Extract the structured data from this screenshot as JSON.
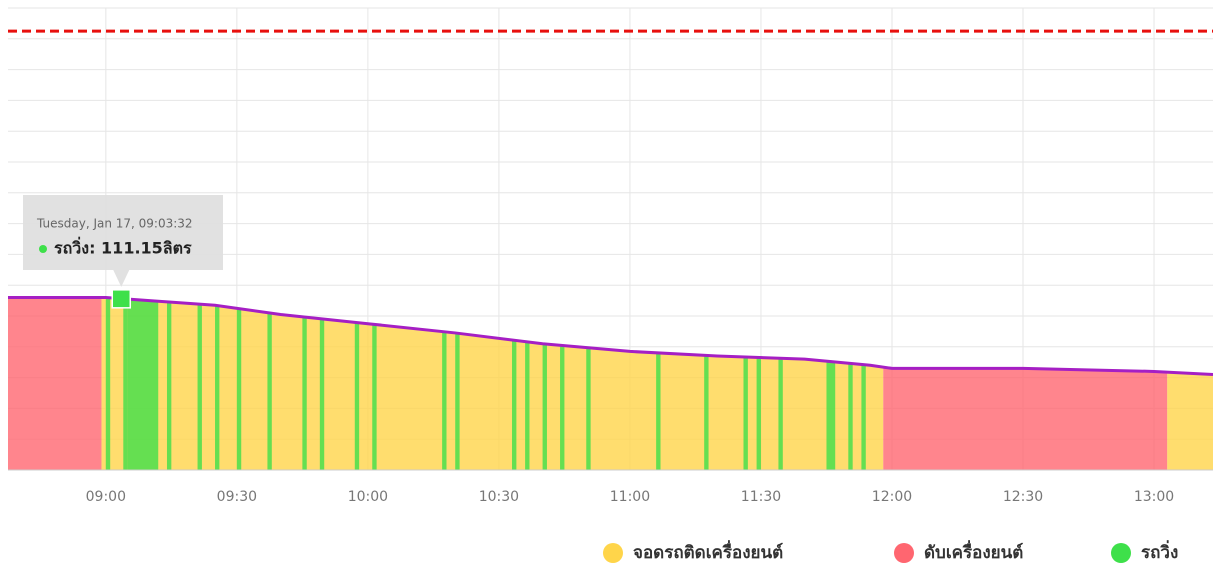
{
  "chart_data": {
    "type": "status-area",
    "xlim": [
      "08:37:36",
      "13:13:30"
    ],
    "xticks": [
      "09:00",
      "09:30",
      "10:00",
      "10:30",
      "11:00",
      "11:30",
      "12:00",
      "12:30",
      "13:00"
    ],
    "ylim": [
      0,
      300
    ],
    "yticks": [
      0,
      20,
      40,
      60,
      80,
      100,
      120,
      140,
      160,
      180,
      200,
      220,
      240,
      260,
      280,
      300
    ],
    "grid": true,
    "threshold": {
      "value": 285,
      "color": "#e8100e"
    },
    "fuel": {
      "color": "#a51fc4",
      "x": [
        "08:37:36",
        "09:00",
        "09:10",
        "09:25",
        "09:40",
        "10:00",
        "10:20",
        "10:40",
        "11:00",
        "11:20",
        "11:40",
        "11:55",
        "12:00",
        "12:30",
        "13:00",
        "13:13:30"
      ],
      "values": [
        112,
        112,
        110,
        107,
        101,
        95,
        89,
        82,
        77,
        74,
        72,
        68,
        66,
        66,
        64,
        62
      ]
    },
    "series": [
      {
        "name": "จอดรถติดเครื่องยนต์",
        "color": "#ffd54a",
        "intervals": [
          [
            "08:59",
            "11:58"
          ],
          [
            "13:03",
            "13:13:30"
          ]
        ]
      },
      {
        "name": "ดับเครื่องยนต์",
        "color": "#ff6670",
        "intervals": [
          [
            "08:37:36",
            "08:59"
          ],
          [
            "11:58",
            "13:03"
          ]
        ]
      },
      {
        "name": "รถวิ่ง",
        "color": "#3ee04a",
        "intervals": [
          [
            "09:00",
            "09:01"
          ],
          [
            "09:04",
            "09:05"
          ],
          [
            "09:05",
            "09:12"
          ],
          [
            "09:14",
            "09:15"
          ],
          [
            "09:21",
            "09:22"
          ],
          [
            "09:25",
            "09:26"
          ],
          [
            "09:30",
            "09:31"
          ],
          [
            "09:37",
            "09:38"
          ],
          [
            "09:45",
            "09:46"
          ],
          [
            "09:49",
            "09:50"
          ],
          [
            "09:57",
            "09:58"
          ],
          [
            "10:01",
            "10:02"
          ],
          [
            "10:17",
            "10:18"
          ],
          [
            "10:20",
            "10:21"
          ],
          [
            "10:33",
            "10:34"
          ],
          [
            "10:36",
            "10:37"
          ],
          [
            "10:40",
            "10:41"
          ],
          [
            "10:44",
            "10:45"
          ],
          [
            "10:50",
            "10:51"
          ],
          [
            "11:06",
            "11:07"
          ],
          [
            "11:17",
            "11:18"
          ],
          [
            "11:26",
            "11:27"
          ],
          [
            "11:29",
            "11:30"
          ],
          [
            "11:34",
            "11:35"
          ],
          [
            "11:45",
            "11:47"
          ],
          [
            "11:50",
            "11:51"
          ],
          [
            "11:53",
            "11:54"
          ]
        ]
      }
    ],
    "tooltip": {
      "date": "Tuesday, Jan 17, 09:03:32",
      "series": 2,
      "label": "รถวิ่ง: 111.15ลิตร",
      "x": "09:03:32",
      "value": 111.15
    }
  }
}
